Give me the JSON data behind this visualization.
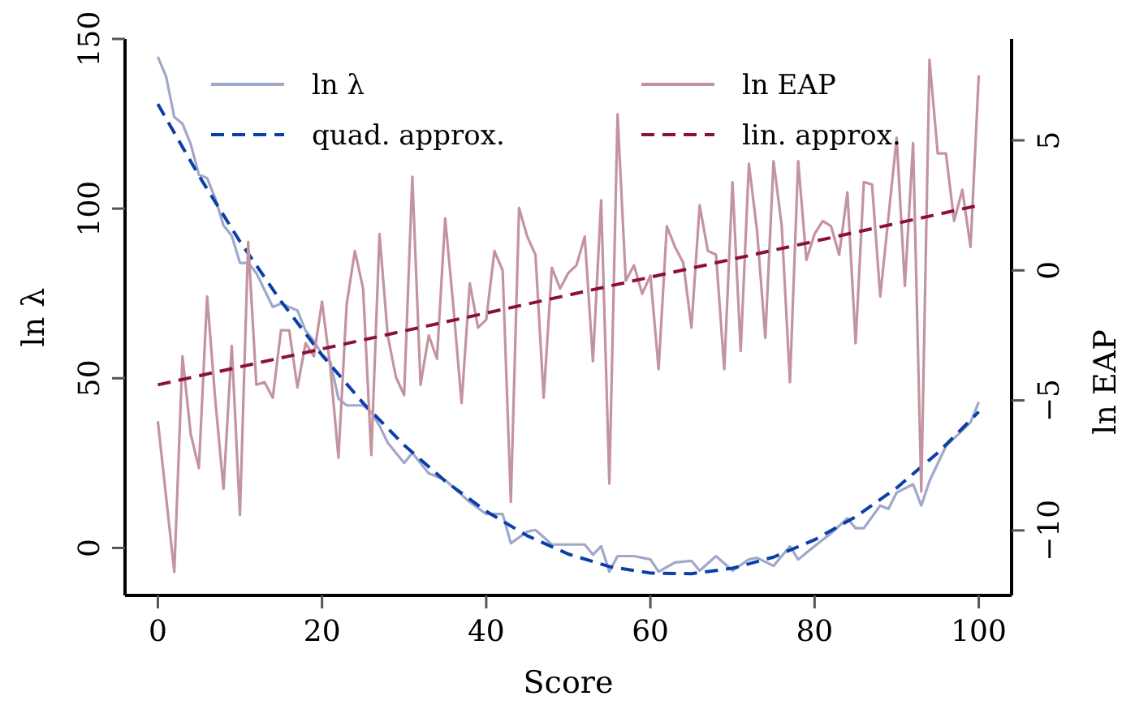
{
  "chart_data": {
    "type": "line",
    "xlabel": "Score",
    "ylabel": "ln λ",
    "y2label": "ln EAP",
    "xlim": [
      -4,
      104
    ],
    "xticks": [
      0,
      20,
      40,
      60,
      80,
      100
    ],
    "ylim": [
      -14,
      150
    ],
    "yticks": [
      0,
      50,
      100,
      150
    ],
    "y2lim": [
      -12.5,
      8.9
    ],
    "y2ticks": [
      {
        "value": -10,
        "label": "−10"
      },
      {
        "value": -5,
        "label": "−5"
      },
      0,
      5
    ],
    "grid": false,
    "legend": "top",
    "series": [
      {
        "name": "ln λ",
        "color": "#9fa8cc",
        "line_style": "solid",
        "x": [
          0,
          1,
          2,
          3,
          4,
          5,
          6,
          7,
          8,
          9,
          10,
          11,
          12,
          13,
          14,
          15,
          16,
          17,
          18,
          19,
          20,
          21,
          22,
          23,
          24,
          25,
          26,
          27,
          28,
          29,
          30,
          31,
          33,
          35,
          38,
          40,
          42,
          43,
          45,
          46,
          48,
          52,
          53,
          54,
          55,
          56,
          58,
          60,
          61,
          63,
          65,
          66,
          68,
          70,
          72,
          73,
          75,
          77,
          78,
          80,
          82,
          84,
          85,
          86,
          88,
          89,
          90,
          92,
          93,
          94,
          96,
          98,
          99,
          100
        ],
        "values": [
          144.7,
          139,
          127,
          125,
          119,
          110,
          109,
          103,
          95,
          92,
          84,
          84,
          81,
          76,
          71,
          72,
          71,
          70,
          64,
          61,
          57,
          55,
          44,
          42,
          42,
          42,
          40,
          36,
          31,
          28,
          25,
          28,
          22,
          20,
          13.5,
          10,
          10,
          1.4,
          4.8,
          5.3,
          1,
          1,
          -2,
          0.5,
          -7,
          -2.4,
          -2.4,
          -3.4,
          -7,
          -4.3,
          -3.8,
          -6.7,
          -2.4,
          -6.7,
          -3.4,
          -2.9,
          -5.3,
          0.5,
          -3.4,
          0.5,
          4.3,
          8.7,
          5.8,
          5.8,
          12.5,
          11.5,
          16.3,
          18.8,
          12.5,
          19.7,
          30,
          34.6,
          37,
          43
        ]
      },
      {
        "name": "quad. approx.",
        "color": "#0a3fa8",
        "line_style": "dashed",
        "x": [
          0,
          5,
          10,
          15,
          20,
          25,
          30,
          35,
          40,
          45,
          50,
          55,
          60,
          65,
          70,
          75,
          80,
          85,
          90,
          95,
          100
        ],
        "values": [
          130.8,
          109.7,
          90.3,
          72.7,
          56.8,
          42.7,
          30.3,
          19.7,
          10.8,
          3.6,
          -1.8,
          -5.5,
          -7.4,
          -7.6,
          -6,
          -2.7,
          2.4,
          9.2,
          17.7,
          28,
          40.1
        ]
      },
      {
        "name": "ln EAP",
        "color": "#c4949e",
        "line_style": "solid",
        "axis": "y2",
        "x": [
          0,
          2,
          3,
          4,
          5,
          6,
          7,
          8,
          9,
          10,
          11,
          12,
          13,
          14,
          15,
          16,
          17,
          18,
          19,
          20,
          21,
          22,
          23,
          24,
          25,
          26,
          27,
          28,
          29,
          30,
          31,
          32,
          33,
          34,
          35,
          36,
          37,
          38,
          39,
          40,
          41,
          42,
          43,
          44,
          45,
          46,
          47,
          48,
          49,
          50,
          51,
          52,
          53,
          54,
          55,
          56,
          57,
          58,
          59,
          60,
          61,
          62,
          63,
          64,
          65,
          66,
          67,
          68,
          69,
          70,
          71,
          72,
          73,
          74,
          75,
          76,
          77,
          78,
          79,
          80,
          81,
          82,
          83,
          84,
          85,
          86,
          87,
          88,
          90,
          91,
          92,
          93,
          94,
          95,
          96,
          97,
          98,
          99,
          100
        ],
        "values": [
          -5.8,
          -11.6,
          -3.3,
          -6.3,
          -7.6,
          -1,
          -5,
          -8.4,
          -2.9,
          -9.4,
          1.1,
          -4.4,
          -4.3,
          -4.9,
          -2.3,
          -2.3,
          -4.5,
          -2.8,
          -3.3,
          -1.2,
          -3.7,
          -7.2,
          -1.3,
          0.75,
          -0.7,
          -7.1,
          1.4,
          -2.5,
          -4.1,
          -4.8,
          3.6,
          -4.4,
          -2.5,
          -3.4,
          2,
          -1.4,
          -5.1,
          -0.5,
          -2.2,
          -1.9,
          0.75,
          0,
          -8.9,
          2.4,
          1.3,
          0.6,
          -4.9,
          0.1,
          -0.7,
          -0.1,
          0.2,
          1.3,
          -3.5,
          2.7,
          -8.2,
          6,
          -0.4,
          0.2,
          -0.9,
          -0.2,
          -3.8,
          1.7,
          0.9,
          0.3,
          -2.2,
          2.5,
          0.75,
          0.6,
          -3.8,
          3.4,
          -3.1,
          4.1,
          1.5,
          -2.6,
          4.2,
          1.7,
          -4.3,
          4.2,
          0.4,
          1.4,
          1.9,
          1.7,
          0.6,
          3,
          -2.8,
          3.4,
          3.3,
          -1,
          5.1,
          -0.6,
          4.9,
          -8.5,
          8.1,
          4.5,
          4.5,
          1.9,
          3.1,
          0.9,
          7.5
        ]
      },
      {
        "name": "lin. approx.",
        "color": "#8b0f3f",
        "line_style": "dashed",
        "axis": "y2",
        "x": [
          0,
          100
        ],
        "values": [
          -4.4,
          2.5
        ]
      }
    ]
  }
}
